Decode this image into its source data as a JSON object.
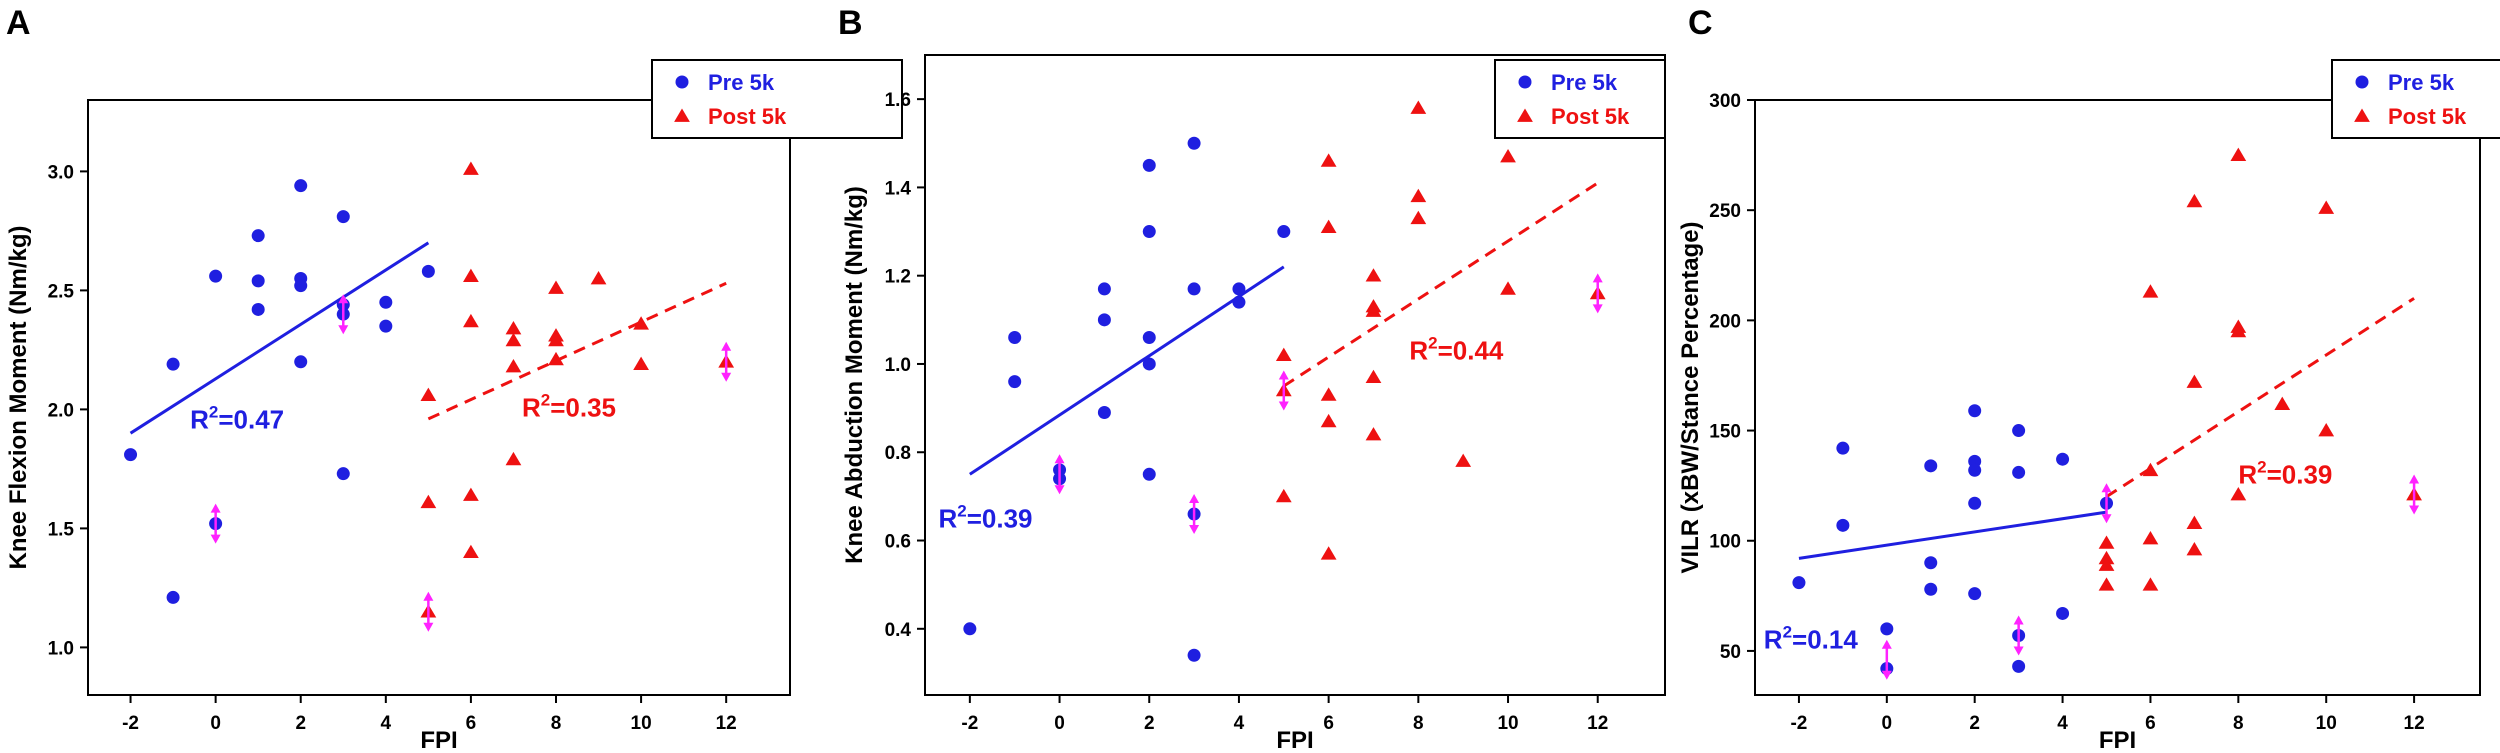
{
  "colors": {
    "pre": "#1f1fe0",
    "post": "#ee1111",
    "marker": "#ff22ff"
  },
  "legend": {
    "pre": "Pre 5k",
    "post": "Post 5k",
    "placement": "top-right"
  },
  "chart_data": [
    {
      "panel": "A",
      "type": "scatter",
      "xlabel": "FPI",
      "ylabel": "Knee Flexion Moment (Nm/kg)",
      "xlim": [
        -3,
        13.5
      ],
      "ylim": [
        0.8,
        3.3
      ],
      "xticks": [
        -2,
        0,
        2,
        4,
        6,
        8,
        10,
        12
      ],
      "yticks": [
        1.0,
        1.5,
        2.0,
        2.5,
        3.0
      ],
      "ytick_labels": [
        "1.0",
        "1.5",
        "2.0",
        "2.5",
        "3.0"
      ],
      "series": [
        {
          "name": "Pre 5k",
          "marker": "circle",
          "x": [
            -2,
            -1,
            -1,
            0,
            0,
            1,
            1,
            1,
            2,
            2,
            2,
            2,
            3,
            3,
            3,
            3,
            4,
            4,
            5
          ],
          "y": [
            1.81,
            2.19,
            1.21,
            2.56,
            1.52,
            2.73,
            2.54,
            2.42,
            2.94,
            2.55,
            2.52,
            2.2,
            2.81,
            2.44,
            2.4,
            1.73,
            2.45,
            2.35,
            2.58
          ]
        },
        {
          "name": "Post 5k",
          "marker": "triangle",
          "x": [
            5,
            5,
            5,
            6,
            6,
            6,
            6,
            6,
            7,
            7,
            7,
            7,
            8,
            8,
            8,
            8,
            9,
            10,
            10,
            12
          ],
          "y": [
            2.06,
            1.61,
            1.15,
            3.01,
            2.56,
            2.37,
            1.64,
            1.4,
            2.34,
            2.29,
            2.18,
            1.79,
            2.51,
            2.31,
            2.29,
            2.21,
            2.55,
            2.36,
            2.19,
            2.2
          ]
        }
      ],
      "fits": [
        {
          "series": "Pre 5k",
          "x": [
            -2,
            5
          ],
          "y": [
            1.9,
            2.7
          ],
          "style": "solid",
          "r2_text": "=0.47",
          "r2_pos": [
            -0.6,
            1.92
          ]
        },
        {
          "series": "Post 5k",
          "x": [
            5,
            12
          ],
          "y": [
            1.96,
            2.53
          ],
          "style": "dashed",
          "r2_text": "=0.35",
          "r2_pos": [
            7.2,
            1.97
          ]
        }
      ],
      "highlight_points": [
        [
          0,
          1.52
        ],
        [
          3,
          2.4
        ],
        [
          5,
          1.15
        ],
        [
          12,
          2.2
        ]
      ]
    },
    {
      "panel": "B",
      "type": "scatter",
      "xlabel": "FPI",
      "ylabel": "Knee Abduction Moment (Nm/kg)",
      "xlim": [
        -3,
        13.5
      ],
      "ylim": [
        0.25,
        1.7
      ],
      "xticks": [
        -2,
        0,
        2,
        4,
        6,
        8,
        10,
        12
      ],
      "yticks": [
        0.4,
        0.6,
        0.8,
        1.0,
        1.2,
        1.4,
        1.6
      ],
      "ytick_labels": [
        "0.4",
        "0.6",
        "0.8",
        "1.0",
        "1.2",
        "1.4",
        "1.6"
      ],
      "series": [
        {
          "name": "Pre 5k",
          "marker": "circle",
          "x": [
            -2,
            -1,
            -1,
            0,
            0,
            1,
            1,
            1,
            2,
            2,
            2,
            2,
            2,
            3,
            3,
            3,
            3,
            4,
            4,
            5
          ],
          "y": [
            0.4,
            1.06,
            0.96,
            0.76,
            0.74,
            1.17,
            1.1,
            0.89,
            1.45,
            1.3,
            1.06,
            1.0,
            0.75,
            1.5,
            1.17,
            0.66,
            0.34,
            1.17,
            1.14,
            1.3
          ]
        },
        {
          "name": "Post 5k",
          "marker": "triangle",
          "x": [
            5,
            5,
            5,
            6,
            6,
            6,
            6,
            6,
            7,
            7,
            7,
            7,
            7,
            8,
            8,
            8,
            9,
            10,
            10,
            12
          ],
          "y": [
            1.02,
            0.94,
            0.7,
            1.46,
            1.31,
            0.93,
            0.87,
            0.57,
            1.2,
            1.12,
            0.97,
            0.84,
            1.13,
            1.58,
            1.38,
            1.33,
            0.78,
            1.47,
            1.17,
            1.16
          ]
        }
      ],
      "fits": [
        {
          "series": "Pre 5k",
          "x": [
            -2,
            5
          ],
          "y": [
            0.75,
            1.22
          ],
          "style": "solid",
          "r2_text": "=0.39",
          "r2_pos": [
            -2.7,
            0.63
          ]
        },
        {
          "series": "Post 5k",
          "x": [
            5,
            12
          ],
          "y": [
            0.95,
            1.41
          ],
          "style": "dashed",
          "r2_text": "=0.44",
          "r2_pos": [
            7.8,
            1.01
          ]
        }
      ],
      "highlight_points": [
        [
          0,
          0.75
        ],
        [
          3,
          0.66
        ],
        [
          5,
          0.94
        ],
        [
          12,
          1.16
        ]
      ]
    },
    {
      "panel": "C",
      "type": "scatter",
      "xlabel": "FPI",
      "ylabel": "VILR (xBW/Stance Percentage)",
      "xlim": [
        -3,
        13.5
      ],
      "ylim": [
        30,
        300
      ],
      "xticks": [
        -2,
        0,
        2,
        4,
        6,
        8,
        10,
        12
      ],
      "yticks": [
        50,
        100,
        150,
        200,
        250,
        300
      ],
      "ytick_labels": [
        "50",
        "100",
        "150",
        "200",
        "250",
        "300"
      ],
      "series": [
        {
          "name": "Pre 5k",
          "marker": "circle",
          "x": [
            -2,
            -1,
            -1,
            0,
            0,
            1,
            1,
            1,
            2,
            2,
            2,
            2,
            2,
            3,
            3,
            3,
            3,
            4,
            4,
            5
          ],
          "y": [
            81,
            142,
            107,
            60,
            42,
            134,
            90,
            78,
            159,
            136,
            132,
            117,
            76,
            150,
            131,
            57,
            43,
            137,
            67,
            117
          ]
        },
        {
          "name": "Post 5k",
          "marker": "triangle",
          "x": [
            5,
            5,
            5,
            5,
            6,
            6,
            6,
            6,
            7,
            7,
            7,
            7,
            8,
            8,
            8,
            8,
            9,
            10,
            10,
            12
          ],
          "y": [
            99,
            92,
            89,
            80,
            213,
            132,
            101,
            80,
            254,
            172,
            108,
            96,
            275,
            197,
            195,
            121,
            162,
            251,
            150,
            121
          ]
        }
      ],
      "fits": [
        {
          "series": "Pre 5k",
          "x": [
            -2,
            5
          ],
          "y": [
            92,
            113
          ],
          "style": "solid",
          "r2_text": "=0.14",
          "r2_pos": [
            -2.8,
            51
          ]
        },
        {
          "series": "Post 5k",
          "x": [
            5,
            12
          ],
          "y": [
            120,
            210
          ],
          "style": "dashed",
          "r2_text": "=0.39",
          "r2_pos": [
            8.0,
            126
          ]
        }
      ],
      "highlight_points": [
        [
          0,
          46
        ],
        [
          3,
          57
        ],
        [
          5,
          117
        ],
        [
          12,
          121
        ]
      ]
    }
  ]
}
